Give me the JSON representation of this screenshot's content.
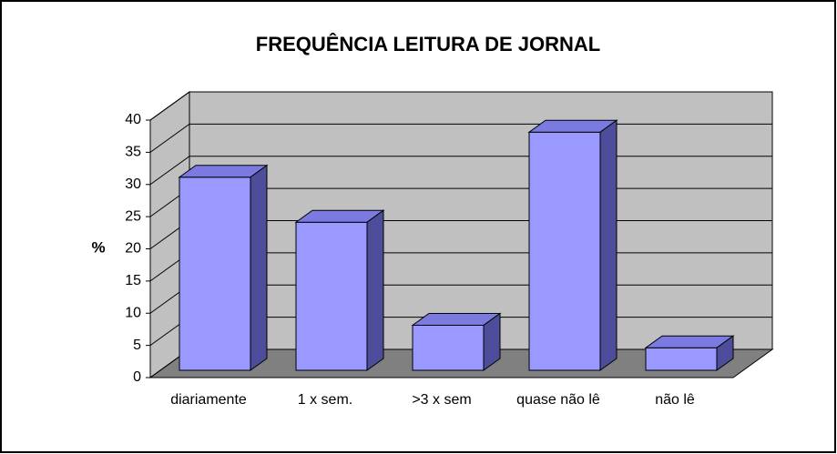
{
  "chart_data": {
    "type": "bar3d",
    "title": "FREQUÊNCIA  LEITURA DE JORNAL",
    "y_label": "%",
    "categories": [
      "diariamente",
      "1 x sem.",
      ">3 x sem",
      "quase não lê",
      "não lê"
    ],
    "values": [
      30,
      23,
      7,
      37,
      3.5
    ],
    "color": "#9999ff",
    "ylim": [
      0,
      40
    ],
    "yticks": [
      0,
      5,
      10,
      15,
      20,
      25,
      30,
      35,
      40
    ],
    "grid": true
  }
}
